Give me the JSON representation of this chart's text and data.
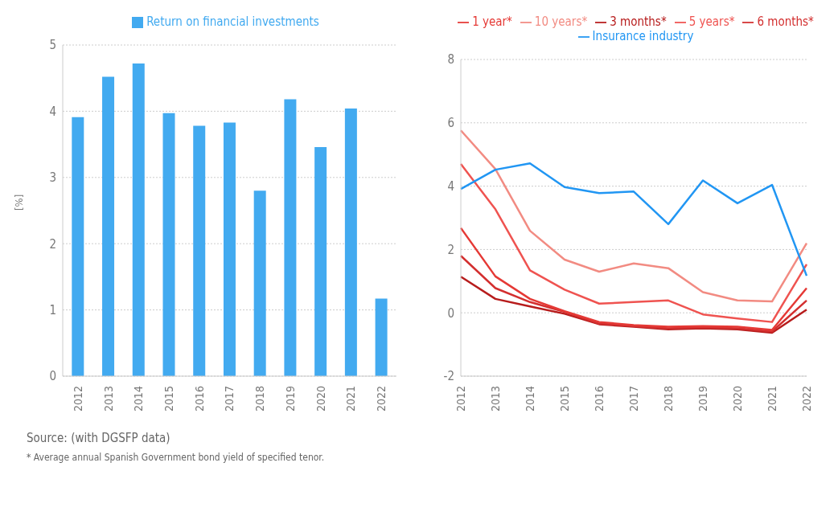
{
  "chart_data": [
    {
      "type": "bar",
      "ylabel": "[%]",
      "categories": [
        "2012",
        "2013",
        "2014",
        "2015",
        "2016",
        "2017",
        "2018",
        "2019",
        "2020",
        "2021",
        "2022"
      ],
      "series": [
        {
          "name": "Return on financial investments",
          "color": "#42aaf0",
          "values": [
            3.91,
            4.52,
            4.72,
            3.97,
            3.78,
            3.83,
            2.8,
            4.18,
            3.46,
            4.04,
            1.17
          ]
        }
      ],
      "ylim": [
        0,
        5
      ],
      "yticks": [
        0,
        1,
        2,
        3,
        4,
        5
      ],
      "grid": "y",
      "legend": "top",
      "annotations": [
        "Source: (with DGSFP data)",
        "* Average annual Spanish Government bond yield of specified tenor."
      ]
    },
    {
      "type": "line",
      "categories": [
        "2012",
        "2013",
        "2014",
        "2015",
        "2016",
        "2017",
        "2018",
        "2019",
        "2020",
        "2021",
        "2022"
      ],
      "series": [
        {
          "name": "3 months*",
          "color": "#b71c1c",
          "values": [
            1.14,
            0.44,
            0.2,
            -0.03,
            -0.36,
            -0.44,
            -0.52,
            -0.49,
            -0.52,
            -0.63,
            0.1
          ]
        },
        {
          "name": "6 months*",
          "color": "#d32f2f",
          "values": [
            1.8,
            0.78,
            0.34,
            0.03,
            -0.34,
            -0.42,
            -0.49,
            -0.46,
            -0.49,
            -0.59,
            0.39
          ]
        },
        {
          "name": "1 year*",
          "color": "#e53935",
          "values": [
            2.68,
            1.15,
            0.44,
            0.05,
            -0.29,
            -0.39,
            -0.44,
            -0.42,
            -0.44,
            -0.54,
            0.78
          ]
        },
        {
          "name": "5 years*",
          "color": "#ef5350",
          "values": [
            4.7,
            3.27,
            1.34,
            0.73,
            0.29,
            0.34,
            0.39,
            -0.05,
            -0.18,
            -0.29,
            1.53
          ]
        },
        {
          "name": "10 years*",
          "color": "#f28b82",
          "values": [
            5.76,
            4.54,
            2.59,
            1.68,
            1.3,
            1.56,
            1.41,
            0.65,
            0.39,
            0.36,
            2.2
          ]
        },
        {
          "name": "Insurance industry",
          "color": "#2196f3",
          "values": [
            3.91,
            4.52,
            4.72,
            3.97,
            3.78,
            3.83,
            2.8,
            4.18,
            3.46,
            4.04,
            1.17
          ]
        }
      ],
      "ylim": [
        -2,
        8
      ],
      "yticks": [
        -2,
        0,
        2,
        4,
        6,
        8
      ],
      "grid": "y",
      "legend": "top",
      "marker": "none",
      "line_style": "solid"
    }
  ]
}
